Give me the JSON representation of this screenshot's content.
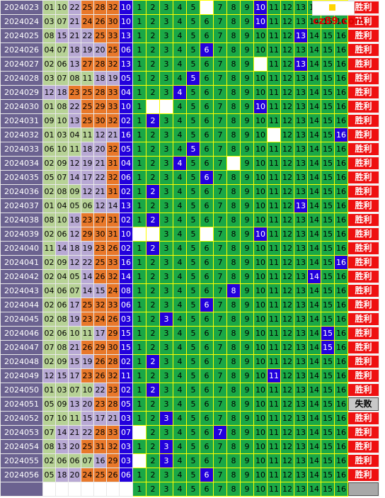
{
  "logo": {
    "text": "cz89.com",
    "icon": "yellow-square-icon"
  },
  "colors": {
    "period_bg": "#6b6290",
    "zone1": "#b7d296",
    "zone2": "#b8a9d4",
    "zone3": "#e8782a",
    "blue": "#2200dd",
    "green_cell": "#1aa846",
    "win": "#ee1111"
  },
  "rows": [
    {
      "period": "2024023",
      "nums": [
        "01",
        "10",
        "22",
        "25",
        "28",
        "32"
      ],
      "blue": "10",
      "marks": [
        10
      ],
      "result": "胜利"
    },
    {
      "period": "2024024",
      "nums": [
        "03",
        "07",
        "21",
        "24",
        "26",
        "30"
      ],
      "blue": "10",
      "marks": [
        10
      ],
      "result": "胜利"
    },
    {
      "period": "2024025",
      "nums": [
        "08",
        "15",
        "21",
        "22",
        "25",
        "33"
      ],
      "blue": "13",
      "marks": [
        13
      ],
      "result": "胜利"
    },
    {
      "period": "2024026",
      "nums": [
        "04",
        "07",
        "18",
        "19",
        "20",
        "25"
      ],
      "blue": "06",
      "marks": [
        6
      ],
      "result": "胜利"
    },
    {
      "period": "2024027",
      "nums": [
        "02",
        "06",
        "13",
        "27",
        "28",
        "32"
      ],
      "blue": "13",
      "marks": [
        13
      ],
      "result": "胜利"
    },
    {
      "period": "2024028",
      "nums": [
        "03",
        "07",
        "08",
        "11",
        "18",
        "19"
      ],
      "blue": "05",
      "marks": [
        5
      ],
      "result": "胜利"
    },
    {
      "period": "2024029",
      "nums": [
        "12",
        "18",
        "23",
        "25",
        "28",
        "33"
      ],
      "blue": "04",
      "marks": [
        4
      ],
      "result": "胜利"
    },
    {
      "period": "2024030",
      "nums": [
        "01",
        "08",
        "22",
        "25",
        "29",
        "33"
      ],
      "blue": "10",
      "marks": [
        10
      ],
      "result": "胜利"
    },
    {
      "period": "2024031",
      "nums": [
        "09",
        "10",
        "13",
        "25",
        "30",
        "32"
      ],
      "blue": "02",
      "marks": [
        2
      ],
      "result": "胜利"
    },
    {
      "period": "2024032",
      "nums": [
        "01",
        "03",
        "04",
        "11",
        "12",
        "21"
      ],
      "blue": "16",
      "marks": [
        16
      ],
      "result": "胜利"
    },
    {
      "period": "2024033",
      "nums": [
        "06",
        "10",
        "11",
        "18",
        "20",
        "32"
      ],
      "blue": "05",
      "marks": [
        5
      ],
      "result": "胜利"
    },
    {
      "period": "2024034",
      "nums": [
        "02",
        "09",
        "12",
        "19",
        "21",
        "31"
      ],
      "blue": "04",
      "marks": [
        4
      ],
      "result": "胜利"
    },
    {
      "period": "2024035",
      "nums": [
        "05",
        "07",
        "14",
        "17",
        "22",
        "32"
      ],
      "blue": "06",
      "marks": [
        6
      ],
      "result": "胜利"
    },
    {
      "period": "2024036",
      "nums": [
        "02",
        "08",
        "09",
        "12",
        "21",
        "31"
      ],
      "blue": "02",
      "marks": [
        2
      ],
      "result": "胜利"
    },
    {
      "period": "2024037",
      "nums": [
        "01",
        "04",
        "05",
        "06",
        "12",
        "14"
      ],
      "blue": "13",
      "marks": [
        13
      ],
      "result": "胜利"
    },
    {
      "period": "2024038",
      "nums": [
        "08",
        "10",
        "18",
        "23",
        "27",
        "31"
      ],
      "blue": "02",
      "marks": [
        2
      ],
      "result": "胜利"
    },
    {
      "period": "2024039",
      "nums": [
        "02",
        "06",
        "12",
        "29",
        "30",
        "31"
      ],
      "blue": "10",
      "marks": [
        10
      ],
      "result": "胜利"
    },
    {
      "period": "2024040",
      "nums": [
        "11",
        "14",
        "18",
        "19",
        "23",
        "26"
      ],
      "blue": "02",
      "marks": [
        2
      ],
      "result": "胜利"
    },
    {
      "period": "2024041",
      "nums": [
        "02",
        "09",
        "12",
        "22",
        "25",
        "33"
      ],
      "blue": "16",
      "marks": [
        16
      ],
      "result": "胜利"
    },
    {
      "period": "2024042",
      "nums": [
        "02",
        "04",
        "05",
        "14",
        "26",
        "32"
      ],
      "blue": "14",
      "marks": [
        14
      ],
      "result": "胜利"
    },
    {
      "period": "2024043",
      "nums": [
        "04",
        "06",
        "07",
        "14",
        "15",
        "24"
      ],
      "blue": "08",
      "marks": [
        8
      ],
      "result": "胜利"
    },
    {
      "period": "2024044",
      "nums": [
        "02",
        "06",
        "17",
        "25",
        "32",
        "33"
      ],
      "blue": "06",
      "marks": [
        6
      ],
      "result": "胜利"
    },
    {
      "period": "2024045",
      "nums": [
        "02",
        "08",
        "19",
        "23",
        "24",
        "26"
      ],
      "blue": "03",
      "marks": [
        3
      ],
      "result": "胜利"
    },
    {
      "period": "2024046",
      "nums": [
        "02",
        "06",
        "10",
        "11",
        "17",
        "29"
      ],
      "blue": "15",
      "marks": [
        15
      ],
      "result": "胜利"
    },
    {
      "period": "2024047",
      "nums": [
        "07",
        "08",
        "21",
        "26",
        "29",
        "30"
      ],
      "blue": "15",
      "marks": [
        15
      ],
      "result": "胜利"
    },
    {
      "period": "2024048",
      "nums": [
        "02",
        "09",
        "15",
        "19",
        "26",
        "28"
      ],
      "blue": "02",
      "marks": [
        2
      ],
      "result": "胜利"
    },
    {
      "period": "2024049",
      "nums": [
        "12",
        "15",
        "17",
        "23",
        "26",
        "32"
      ],
      "blue": "11",
      "marks": [
        11
      ],
      "result": "胜利"
    },
    {
      "period": "2024050",
      "nums": [
        "01",
        "03",
        "07",
        "10",
        "22",
        "33"
      ],
      "blue": "02",
      "marks": [
        2
      ],
      "result": "胜利"
    },
    {
      "period": "2024051",
      "nums": [
        "05",
        "09",
        "13",
        "20",
        "23",
        "28"
      ],
      "blue": "05",
      "marks": [],
      "result": "失败"
    },
    {
      "period": "2024052",
      "nums": [
        "07",
        "10",
        "11",
        "15",
        "17",
        "21"
      ],
      "blue": "03",
      "marks": [
        3
      ],
      "result": "胜利"
    },
    {
      "period": "2024053",
      "nums": [
        "07",
        "14",
        "21",
        "22",
        "28",
        "33"
      ],
      "blue": "07",
      "marks": [
        7
      ],
      "result": "胜利"
    },
    {
      "period": "2024054",
      "nums": [
        "08",
        "13",
        "20",
        "25",
        "31",
        "32"
      ],
      "blue": "03",
      "marks": [
        3
      ],
      "result": "胜利"
    },
    {
      "period": "2024055",
      "nums": [
        "02",
        "06",
        "06",
        "07",
        "16",
        "29"
      ],
      "blue": "03",
      "marks": [
        3
      ],
      "result": "胜利"
    },
    {
      "period": "2024056",
      "nums": [
        "05",
        "18",
        "20",
        "24",
        "25",
        "26"
      ],
      "blue": "06",
      "marks": [
        6
      ],
      "result": "胜利"
    }
  ],
  "blanks": [
    [
      6
    ],
    [],
    [],
    [],
    [
      10
    ],
    [],
    [],
    [
      2,
      3
    ],
    [],
    [
      11
    ],
    [],
    [
      8
    ],
    [],
    [],
    [],
    [],
    [
      1,
      2,
      6
    ],
    [],
    [],
    [],
    [],
    [],
    [],
    [],
    [],
    [],
    [],
    [],
    [],
    [],
    [
      1
    ],
    [],
    [
      1
    ],
    [],
    []
  ]
}
